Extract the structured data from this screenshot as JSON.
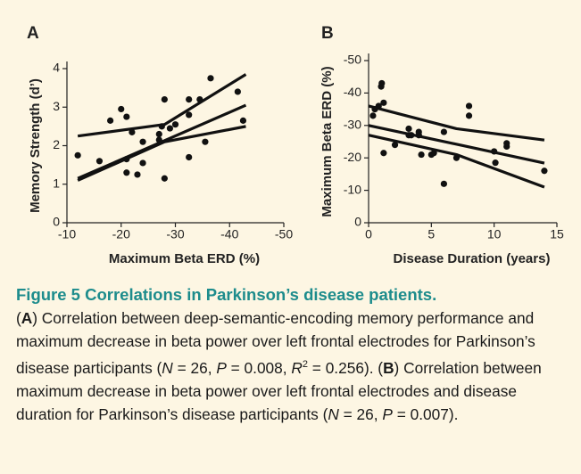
{
  "chart_data": [
    {
      "type": "scatter",
      "panel": "A",
      "x_label": "Maximum Beta ERD (%)",
      "y_label": "Memory Strength (d’)",
      "xlim": [
        -10,
        -50
      ],
      "xticks": [
        -10,
        -20,
        -30,
        -40,
        -50
      ],
      "ylim": [
        0,
        4
      ],
      "yticks": [
        0,
        1,
        2,
        3,
        4
      ],
      "color": "#111111",
      "x": [
        -12,
        -16,
        -18,
        -20,
        -21,
        -22,
        -21,
        -21,
        -23,
        -24,
        -24,
        -27,
        -27.5,
        -27,
        -28,
        -28,
        -29,
        -30,
        -32.5,
        -32.5,
        -32.5,
        -34.5,
        -35.5,
        -36.5,
        -41.5,
        -42.5
      ],
      "values": [
        1.75,
        1.6,
        2.65,
        2.95,
        2.75,
        2.35,
        1.65,
        1.3,
        1.25,
        1.55,
        2.1,
        2.3,
        2.5,
        2.15,
        3.2,
        1.15,
        2.45,
        2.55,
        3.2,
        2.8,
        1.7,
        3.2,
        2.1,
        3.75,
        3.4,
        2.65
      ],
      "fit_lines": [
        {
          "x": [
            -12,
            -43
          ],
          "y": [
            1.15,
            3.05
          ]
        },
        {
          "x": [
            -12,
            -28,
            -43
          ],
          "y": [
            2.25,
            2.55,
            3.85
          ]
        },
        {
          "x": [
            -12,
            -28,
            -43
          ],
          "y": [
            1.1,
            2.1,
            2.5
          ]
        }
      ]
    },
    {
      "type": "scatter",
      "panel": "B",
      "x_label": "Disease Duration (years)",
      "y_label": "Maximum Beta ERD (%)",
      "xlim": [
        0,
        15
      ],
      "xticks": [
        0,
        5,
        10,
        15
      ],
      "ylim": [
        0,
        -50
      ],
      "yticks": [
        0,
        -10,
        -20,
        -30,
        -40,
        -50
      ],
      "color": "#111111",
      "x": [
        0.35,
        0.5,
        0.8,
        1,
        1.05,
        1.2,
        1.2,
        2.1,
        3.2,
        3.2,
        3.4,
        4,
        4,
        4.2,
        5,
        5.2,
        6,
        6,
        7,
        8,
        8,
        10,
        10.1,
        11,
        11,
        14
      ],
      "values": [
        -33,
        -35,
        -36,
        -42,
        -43,
        -21.5,
        -37,
        -24,
        -29,
        -27,
        -27,
        -27,
        -28,
        -21,
        -21,
        -21.5,
        -12,
        -28,
        -20,
        -36,
        -33,
        -22,
        -18.5,
        -23.5,
        -24.5,
        -16
      ],
      "fit_lines": [
        {
          "x": [
            0,
            14
          ],
          "y": [
            -30,
            -18.4
          ]
        },
        {
          "x": [
            0,
            7,
            14
          ],
          "y": [
            -36,
            -29,
            -25.5
          ]
        },
        {
          "x": [
            0,
            7,
            14
          ],
          "y": [
            -27,
            -21,
            -11
          ]
        }
      ]
    }
  ],
  "caption": {
    "title": "Figure 5 Correlations in Parkinson’s disease patients.",
    "segments": [
      "(",
      "A",
      ") Correlation between deep-semantic-encoding memory performance and maximum decrease in beta power over left frontal electrodes for Parkinson’s disease participants (",
      "N",
      " = 26, ",
      "P",
      " = 0.008, ",
      "R",
      "2",
      " = 0.256). (",
      "B",
      ") Correlation between maximum decrease in beta power over left frontal electrodes and disease duration for Parkinson’s disease participants (",
      "N",
      " = 26, ",
      "P",
      " = 0.007)."
    ]
  }
}
